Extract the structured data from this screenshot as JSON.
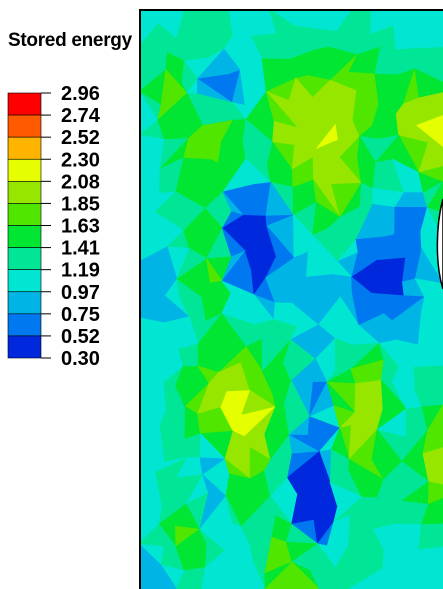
{
  "chart_data": {
    "type": "heatmap",
    "title": "Stored energy",
    "colorbar": {
      "ticks": [
        "2.96",
        "2.74",
        "2.52",
        "2.30",
        "2.08",
        "1.85",
        "1.63",
        "1.41",
        "1.19",
        "0.97",
        "0.75",
        "0.52",
        "0.30"
      ],
      "min": 0.3,
      "max": 2.96,
      "bands": [
        {
          "from": 2.74,
          "to": 2.96,
          "color": "#ff0000"
        },
        {
          "from": 2.52,
          "to": 2.74,
          "color": "#ff5a00"
        },
        {
          "from": 2.3,
          "to": 2.52,
          "color": "#ffb400"
        },
        {
          "from": 2.08,
          "to": 2.3,
          "color": "#e6ff00"
        },
        {
          "from": 1.85,
          "to": 2.08,
          "color": "#96e600"
        },
        {
          "from": 1.63,
          "to": 1.85,
          "color": "#50e600"
        },
        {
          "from": 1.41,
          "to": 1.63,
          "color": "#00e632"
        },
        {
          "from": 1.19,
          "to": 1.41,
          "color": "#00e696"
        },
        {
          "from": 0.97,
          "to": 1.19,
          "color": "#00e6d2"
        },
        {
          "from": 0.75,
          "to": 0.97,
          "color": "#00b4e6"
        },
        {
          "from": 0.52,
          "to": 0.75,
          "color": "#0078f0"
        },
        {
          "from": 0.3,
          "to": 0.52,
          "color": "#0028dc"
        }
      ]
    }
  }
}
